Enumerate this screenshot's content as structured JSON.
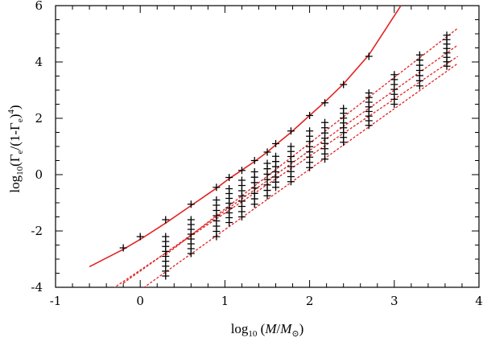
{
  "chart_data": {
    "type": "scatter",
    "title": "",
    "xlabel": {
      "prefix": "log",
      "sub": "10",
      "paren_open": " (",
      "var_m": "M",
      "slash": "/",
      "var_m2": "M",
      "sun": "⊙",
      "paren_close": ")"
    },
    "ylabel": {
      "prefix": "log",
      "sub": "10",
      "open": "(Γ",
      "sub_e1": "e",
      "mid": "/(1-Γ",
      "sub_e2": "e",
      "close_pre": ")",
      "sup4": "4",
      "close_post": ")"
    },
    "xlim": [
      -1,
      4
    ],
    "ylim": [
      -4,
      6
    ],
    "xticks": [
      -1,
      0,
      1,
      2,
      3,
      4
    ],
    "yticks": [
      -4,
      -2,
      0,
      2,
      4,
      6
    ],
    "grid": false,
    "colors": {
      "curve": "#e32222",
      "marker": "#000000",
      "axis": "#000000"
    },
    "curve_solid": {
      "x": [
        -0.6,
        -0.2,
        0.0,
        0.3,
        0.6,
        0.9,
        1.05,
        1.2,
        1.35,
        1.5,
        1.6,
        1.78,
        2.0,
        2.18,
        2.4,
        2.7,
        3.1
      ],
      "y": [
        -3.27,
        -2.65,
        -2.3,
        -1.72,
        -1.1,
        -0.48,
        -0.14,
        0.16,
        0.47,
        0.8,
        1.06,
        1.5,
        2.1,
        2.58,
        3.22,
        4.25,
        6.1
      ]
    },
    "curves_dashed": [
      {
        "x": [
          0.3,
          3.75
        ],
        "y": [
          -2.85,
          5.2
        ]
      },
      {
        "x": [
          -0.2,
          3.75
        ],
        "y": [
          -3.85,
          4.6
        ]
      },
      {
        "x": [
          -0.4,
          3.75
        ],
        "y": [
          -4.2,
          4.2
        ]
      },
      {
        "x": [
          0.0,
          3.75
        ],
        "y": [
          -4.1,
          3.95
        ]
      }
    ],
    "points_solid": {
      "x": [
        -0.2,
        0.0,
        0.3,
        0.6,
        0.9,
        1.05,
        1.2,
        1.35,
        1.5,
        1.6,
        1.78,
        2.0,
        2.18,
        2.4,
        2.7
      ],
      "y": [
        -2.6,
        -2.2,
        -1.6,
        -1.05,
        -0.45,
        -0.1,
        0.15,
        0.5,
        0.8,
        1.1,
        1.55,
        2.1,
        2.55,
        3.2,
        4.2
      ]
    },
    "point_columns": [
      {
        "x": 0.3,
        "ymax": -2.2,
        "ymin": -3.6,
        "n": 9
      },
      {
        "x": 0.6,
        "ymax": -1.6,
        "ymin": -2.8,
        "n": 8
      },
      {
        "x": 0.9,
        "ymax": -0.9,
        "ymin": -2.2,
        "n": 8
      },
      {
        "x": 1.05,
        "ymax": -0.5,
        "ymin": -1.7,
        "n": 8
      },
      {
        "x": 1.2,
        "ymax": -0.2,
        "ymin": -1.5,
        "n": 8
      },
      {
        "x": 1.35,
        "ymax": 0.1,
        "ymin": -1.05,
        "n": 7
      },
      {
        "x": 1.5,
        "ymax": 0.4,
        "ymin": -0.75,
        "n": 7
      },
      {
        "x": 1.6,
        "ymax": 0.65,
        "ymin": -0.45,
        "n": 7
      },
      {
        "x": 1.78,
        "ymax": 1.0,
        "ymin": -0.25,
        "n": 8
      },
      {
        "x": 2.0,
        "ymax": 1.55,
        "ymin": 0.25,
        "n": 8
      },
      {
        "x": 2.18,
        "ymax": 1.85,
        "ymin": 0.55,
        "n": 8
      },
      {
        "x": 2.4,
        "ymax": 2.35,
        "ymin": 1.15,
        "n": 8
      },
      {
        "x": 2.7,
        "ymax": 2.9,
        "ymin": 1.75,
        "n": 8
      },
      {
        "x": 3.0,
        "ymax": 3.55,
        "ymin": 2.5,
        "n": 7
      },
      {
        "x": 3.3,
        "ymax": 4.25,
        "ymin": 3.15,
        "n": 7
      },
      {
        "x": 3.62,
        "ymax": 4.95,
        "ymin": 3.85,
        "n": 8
      }
    ]
  }
}
